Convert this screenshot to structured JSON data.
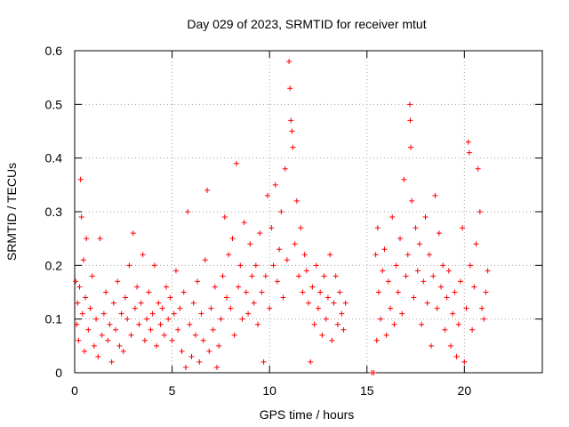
{
  "chart_data": {
    "type": "scatter",
    "title": "Day 029 of 2023, SRMTID for receiver mtut",
    "xlabel": "GPS time / hours",
    "ylabel": "SRMTID / TECUs",
    "xlim": [
      0,
      24
    ],
    "ylim": [
      0,
      0.6
    ],
    "x_ticks": [
      0,
      5,
      10,
      15,
      20
    ],
    "x_tick_labels": [
      "0",
      "5",
      "10",
      "15",
      "20"
    ],
    "y_ticks": [
      0,
      0.1,
      0.2,
      0.3,
      0.4,
      0.5,
      0.6
    ],
    "y_tick_labels": [
      "0",
      "0.1",
      "0.2",
      "0.3",
      "0.4",
      "0.5",
      "0.6"
    ],
    "grid": true,
    "marker": "+",
    "color": "#ff0000",
    "series": [
      {
        "name": "SRMTID",
        "points": [
          [
            0.05,
            0.17
          ],
          [
            0.1,
            0.09
          ],
          [
            0.15,
            0.13
          ],
          [
            0.2,
            0.06
          ],
          [
            0.25,
            0.16
          ],
          [
            0.3,
            0.36
          ],
          [
            0.35,
            0.29
          ],
          [
            0.4,
            0.11
          ],
          [
            0.45,
            0.21
          ],
          [
            0.5,
            0.04
          ],
          [
            0.55,
            0.14
          ],
          [
            0.6,
            0.25
          ],
          [
            0.7,
            0.08
          ],
          [
            0.8,
            0.12
          ],
          [
            0.9,
            0.18
          ],
          [
            1.0,
            0.05
          ],
          [
            1.1,
            0.1
          ],
          [
            1.2,
            0.03
          ],
          [
            1.3,
            0.25
          ],
          [
            1.4,
            0.07
          ],
          [
            1.5,
            0.11
          ],
          [
            1.6,
            0.15
          ],
          [
            1.7,
            0.06
          ],
          [
            1.8,
            0.09
          ],
          [
            1.9,
            0.02
          ],
          [
            2.0,
            0.13
          ],
          [
            2.1,
            0.08
          ],
          [
            2.2,
            0.17
          ],
          [
            2.3,
            0.05
          ],
          [
            2.4,
            0.11
          ],
          [
            2.5,
            0.04
          ],
          [
            2.6,
            0.14
          ],
          [
            2.7,
            0.1
          ],
          [
            2.8,
            0.2
          ],
          [
            2.9,
            0.07
          ],
          [
            3.0,
            0.26
          ],
          [
            3.1,
            0.12
          ],
          [
            3.2,
            0.16
          ],
          [
            3.3,
            0.09
          ],
          [
            3.4,
            0.13
          ],
          [
            3.5,
            0.22
          ],
          [
            3.6,
            0.06
          ],
          [
            3.7,
            0.1
          ],
          [
            3.8,
            0.15
          ],
          [
            3.9,
            0.08
          ],
          [
            4.0,
            0.11
          ],
          [
            4.1,
            0.2
          ],
          [
            4.2,
            0.05
          ],
          [
            4.3,
            0.13
          ],
          [
            4.4,
            0.09
          ],
          [
            4.5,
            0.12
          ],
          [
            4.6,
            0.07
          ],
          [
            4.7,
            0.16
          ],
          [
            4.8,
            0.1
          ],
          [
            4.9,
            0.14
          ],
          [
            5.0,
            0.06
          ],
          [
            5.1,
            0.11
          ],
          [
            5.2,
            0.19
          ],
          [
            5.3,
            0.08
          ],
          [
            5.4,
            0.12
          ],
          [
            5.5,
            0.04
          ],
          [
            5.6,
            0.15
          ],
          [
            5.7,
            0.01
          ],
          [
            5.8,
            0.3
          ],
          [
            5.9,
            0.09
          ],
          [
            6.0,
            0.03
          ],
          [
            6.1,
            0.13
          ],
          [
            6.2,
            0.07
          ],
          [
            6.3,
            0.17
          ],
          [
            6.4,
            0.02
          ],
          [
            6.5,
            0.11
          ],
          [
            6.6,
            0.06
          ],
          [
            6.7,
            0.21
          ],
          [
            6.8,
            0.34
          ],
          [
            6.9,
            0.04
          ],
          [
            7.0,
            0.12
          ],
          [
            7.1,
            0.08
          ],
          [
            7.2,
            0.16
          ],
          [
            7.3,
            0.01
          ],
          [
            7.4,
            0.05
          ],
          [
            7.5,
            0.1
          ],
          [
            7.6,
            0.18
          ],
          [
            7.7,
            0.29
          ],
          [
            7.8,
            0.14
          ],
          [
            7.9,
            0.22
          ],
          [
            8.0,
            0.12
          ],
          [
            8.1,
            0.25
          ],
          [
            8.2,
            0.07
          ],
          [
            8.3,
            0.39
          ],
          [
            8.4,
            0.16
          ],
          [
            8.5,
            0.2
          ],
          [
            8.6,
            0.1
          ],
          [
            8.7,
            0.28
          ],
          [
            8.8,
            0.15
          ],
          [
            8.9,
            0.11
          ],
          [
            9.0,
            0.24
          ],
          [
            9.1,
            0.18
          ],
          [
            9.2,
            0.13
          ],
          [
            9.3,
            0.2
          ],
          [
            9.4,
            0.09
          ],
          [
            9.5,
            0.26
          ],
          [
            9.6,
            0.15
          ],
          [
            9.7,
            0.02
          ],
          [
            9.8,
            0.18
          ],
          [
            9.9,
            0.33
          ],
          [
            10.0,
            0.12
          ],
          [
            10.1,
            0.27
          ],
          [
            10.2,
            0.2
          ],
          [
            10.3,
            0.35
          ],
          [
            10.4,
            0.17
          ],
          [
            10.5,
            0.23
          ],
          [
            10.6,
            0.3
          ],
          [
            10.7,
            0.14
          ],
          [
            10.8,
            0.38
          ],
          [
            10.9,
            0.21
          ],
          [
            11.0,
            0.58
          ],
          [
            11.05,
            0.53
          ],
          [
            11.1,
            0.47
          ],
          [
            11.15,
            0.45
          ],
          [
            11.2,
            0.42
          ],
          [
            11.3,
            0.24
          ],
          [
            11.4,
            0.32
          ],
          [
            11.5,
            0.18
          ],
          [
            11.6,
            0.27
          ],
          [
            11.7,
            0.15
          ],
          [
            11.8,
            0.22
          ],
          [
            11.9,
            0.19
          ],
          [
            12.0,
            0.13
          ],
          [
            12.1,
            0.02
          ],
          [
            12.2,
            0.16
          ],
          [
            12.3,
            0.09
          ],
          [
            12.4,
            0.2
          ],
          [
            12.5,
            0.12
          ],
          [
            12.6,
            0.15
          ],
          [
            12.7,
            0.07
          ],
          [
            12.8,
            0.18
          ],
          [
            12.9,
            0.1
          ],
          [
            13.0,
            0.14
          ],
          [
            13.1,
            0.22
          ],
          [
            13.2,
            0.06
          ],
          [
            13.3,
            0.13
          ],
          [
            13.4,
            0.18
          ],
          [
            13.5,
            0.09
          ],
          [
            13.6,
            0.15
          ],
          [
            13.7,
            0.11
          ],
          [
            13.8,
            0.08
          ],
          [
            13.9,
            0.13
          ],
          [
            15.25,
            0.0
          ],
          [
            15.35,
            0.0
          ],
          [
            15.45,
            0.22
          ],
          [
            15.5,
            0.06
          ],
          [
            15.55,
            0.27
          ],
          [
            15.6,
            0.15
          ],
          [
            15.7,
            0.1
          ],
          [
            15.8,
            0.19
          ],
          [
            15.9,
            0.23
          ],
          [
            16.0,
            0.07
          ],
          [
            16.1,
            0.17
          ],
          [
            16.2,
            0.12
          ],
          [
            16.3,
            0.29
          ],
          [
            16.4,
            0.09
          ],
          [
            16.5,
            0.2
          ],
          [
            16.6,
            0.15
          ],
          [
            16.7,
            0.25
          ],
          [
            16.8,
            0.11
          ],
          [
            16.9,
            0.36
          ],
          [
            17.0,
            0.18
          ],
          [
            17.1,
            0.22
          ],
          [
            17.2,
            0.5
          ],
          [
            17.22,
            0.47
          ],
          [
            17.25,
            0.42
          ],
          [
            17.3,
            0.32
          ],
          [
            17.4,
            0.14
          ],
          [
            17.5,
            0.27
          ],
          [
            17.6,
            0.19
          ],
          [
            17.7,
            0.24
          ],
          [
            17.8,
            0.09
          ],
          [
            17.9,
            0.17
          ],
          [
            18.0,
            0.29
          ],
          [
            18.1,
            0.13
          ],
          [
            18.2,
            0.22
          ],
          [
            18.3,
            0.05
          ],
          [
            18.4,
            0.18
          ],
          [
            18.5,
            0.33
          ],
          [
            18.6,
            0.12
          ],
          [
            18.7,
            0.26
          ],
          [
            18.8,
            0.16
          ],
          [
            18.9,
            0.2
          ],
          [
            19.0,
            0.08
          ],
          [
            19.1,
            0.14
          ],
          [
            19.2,
            0.19
          ],
          [
            19.3,
            0.05
          ],
          [
            19.4,
            0.11
          ],
          [
            19.5,
            0.15
          ],
          [
            19.6,
            0.03
          ],
          [
            19.7,
            0.09
          ],
          [
            19.8,
            0.17
          ],
          [
            19.9,
            0.27
          ],
          [
            20.0,
            0.02
          ],
          [
            20.1,
            0.12
          ],
          [
            20.2,
            0.43
          ],
          [
            20.25,
            0.41
          ],
          [
            20.3,
            0.2
          ],
          [
            20.4,
            0.08
          ],
          [
            20.5,
            0.16
          ],
          [
            20.6,
            0.24
          ],
          [
            20.7,
            0.38
          ],
          [
            20.8,
            0.3
          ],
          [
            20.9,
            0.12
          ],
          [
            21.0,
            0.1
          ],
          [
            21.1,
            0.15
          ],
          [
            21.2,
            0.19
          ]
        ]
      }
    ]
  }
}
